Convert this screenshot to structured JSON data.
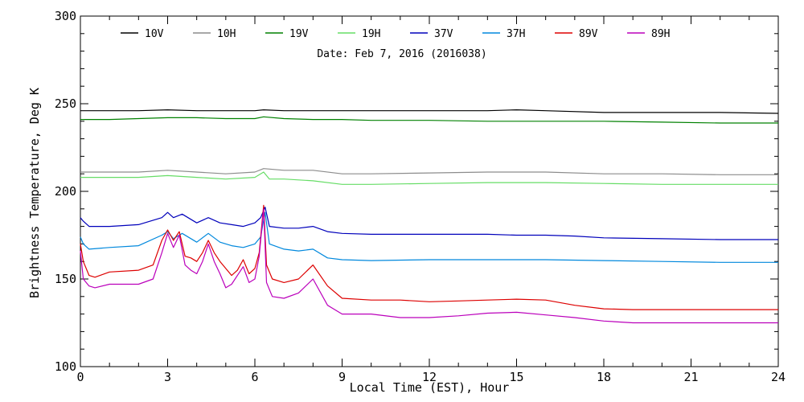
{
  "chart_data": {
    "type": "line",
    "title": "Date: Feb  7, 2016 (2016038)",
    "xlabel": "Local Time (EST), Hour",
    "ylabel": "Brightness Temperature, Deg K",
    "xlim": [
      0,
      24
    ],
    "ylim": [
      100,
      300
    ],
    "xticks": [
      0,
      3,
      6,
      9,
      12,
      15,
      18,
      21,
      24
    ],
    "yticks": [
      100,
      150,
      200,
      250,
      300
    ],
    "grid": false,
    "legend_position": "top",
    "series": [
      {
        "name": "10V",
        "color": "#000000",
        "x": [
          0,
          1,
          2,
          3,
          4,
          5,
          6,
          6.3,
          7,
          8,
          9,
          10,
          12,
          14,
          15,
          16,
          18,
          20,
          22,
          24
        ],
        "y": [
          246,
          246,
          246,
          246.5,
          246,
          246,
          246,
          246.5,
          246,
          246,
          246,
          246,
          246,
          246,
          246.5,
          246,
          245,
          245,
          245,
          244.5
        ]
      },
      {
        "name": "10H",
        "color": "#8c8c8c",
        "x": [
          0,
          1,
          2,
          3,
          4,
          5,
          6,
          6.3,
          7,
          8,
          9,
          10,
          12,
          14,
          15,
          16,
          18,
          20,
          22,
          24
        ],
        "y": [
          211,
          211,
          211,
          212,
          211,
          210,
          211,
          213,
          212,
          212,
          210,
          210,
          210.5,
          211,
          211,
          211,
          210,
          210,
          209.5,
          209.5
        ]
      },
      {
        "name": "19V",
        "color": "#008000",
        "x": [
          0,
          1,
          2,
          3,
          4,
          5,
          6,
          6.3,
          7,
          8,
          9,
          10,
          12,
          14,
          15,
          16,
          18,
          20,
          22,
          24
        ],
        "y": [
          241,
          241,
          241.5,
          242,
          242,
          241.5,
          241.5,
          242.5,
          241.5,
          241,
          241,
          240.5,
          240.5,
          240,
          240,
          240,
          240,
          239.5,
          239,
          239
        ]
      },
      {
        "name": "19H",
        "color": "#66dd66",
        "x": [
          0,
          1,
          2,
          3,
          4,
          5,
          6,
          6.3,
          6.5,
          7,
          8,
          9,
          10,
          12,
          14,
          15,
          16,
          18,
          20,
          22,
          24
        ],
        "y": [
          208,
          208,
          208,
          209,
          208,
          207,
          208,
          211,
          207,
          207,
          206,
          204,
          204,
          204.5,
          205,
          205,
          205,
          204.5,
          204,
          204,
          204
        ]
      },
      {
        "name": "37V",
        "color": "#0000bb",
        "x": [
          0,
          0.1,
          0.3,
          1,
          2,
          2.8,
          3,
          3.2,
          3.5,
          4,
          4.4,
          4.8,
          5.2,
          5.6,
          6,
          6.2,
          6.35,
          6.5,
          7,
          7.5,
          8,
          8.5,
          9,
          10,
          12,
          14,
          15,
          16,
          17,
          18,
          20,
          22,
          24
        ],
        "y": [
          185,
          183,
          180,
          180,
          181,
          185,
          188,
          185,
          187,
          182,
          185,
          182,
          181,
          180,
          182,
          185,
          191,
          180,
          179,
          179,
          180,
          177,
          176,
          175.5,
          175.5,
          175.5,
          175,
          175,
          174.5,
          173.5,
          173,
          172.5,
          172.5
        ]
      },
      {
        "name": "37H",
        "color": "#0088dd",
        "x": [
          0,
          0.1,
          0.3,
          1,
          2,
          2.8,
          3,
          3.2,
          3.5,
          4,
          4.4,
          4.8,
          5.2,
          5.6,
          6,
          6.2,
          6.35,
          6.5,
          7,
          7.5,
          8,
          8.5,
          9,
          10,
          12,
          14,
          16,
          18,
          20,
          22,
          24
        ],
        "y": [
          174,
          170,
          167,
          168,
          169,
          175,
          177,
          173,
          176,
          171,
          176,
          171,
          169,
          168,
          170,
          174,
          188,
          170,
          167,
          166,
          167,
          162,
          161,
          160.5,
          161,
          161,
          161,
          160.5,
          160,
          159.5,
          159.5
        ]
      },
      {
        "name": "89V",
        "color": "#dd0000",
        "x": [
          0,
          0.1,
          0.3,
          0.5,
          1,
          2,
          2.5,
          2.8,
          3,
          3.2,
          3.4,
          3.6,
          3.8,
          4,
          4.2,
          4.4,
          4.6,
          4.8,
          5,
          5.2,
          5.4,
          5.6,
          5.8,
          6,
          6.15,
          6.3,
          6.4,
          6.6,
          7,
          7.5,
          8,
          8.5,
          9,
          10,
          11,
          12,
          13,
          14,
          15,
          16,
          17,
          18,
          19,
          20,
          21,
          22,
          24
        ],
        "y": [
          170,
          160,
          152,
          151,
          154,
          155,
          158,
          172,
          178,
          172,
          177,
          163,
          162,
          160,
          165,
          172,
          165,
          160,
          156,
          152,
          155,
          161,
          153,
          156,
          165,
          192,
          158,
          150,
          148,
          150,
          158,
          146,
          139,
          138,
          138,
          137,
          137.5,
          138,
          138.5,
          138,
          135,
          133,
          132.5,
          132.5,
          132.5,
          132.5,
          132.5
        ]
      },
      {
        "name": "89H",
        "color": "#bb00bb",
        "x": [
          0,
          0.1,
          0.3,
          0.5,
          1,
          2,
          2.5,
          2.8,
          3,
          3.2,
          3.4,
          3.6,
          3.8,
          4,
          4.2,
          4.4,
          4.6,
          4.8,
          5,
          5.2,
          5.4,
          5.6,
          5.8,
          6,
          6.15,
          6.3,
          6.4,
          6.6,
          7,
          7.5,
          8,
          8.5,
          9,
          10,
          11,
          12,
          13,
          14,
          15,
          16,
          17,
          18,
          19,
          20,
          21,
          22,
          24
        ],
        "y": [
          166,
          150,
          146,
          145,
          147,
          147,
          150,
          165,
          176,
          168,
          175,
          158,
          155,
          153,
          160,
          170,
          160,
          153,
          145,
          147,
          152,
          157,
          148,
          150,
          163,
          190,
          148,
          140,
          139,
          142,
          150,
          135,
          130,
          130,
          128,
          128,
          129,
          130.5,
          131,
          129.5,
          128,
          126,
          125,
          125,
          125,
          125,
          125
        ]
      }
    ]
  }
}
